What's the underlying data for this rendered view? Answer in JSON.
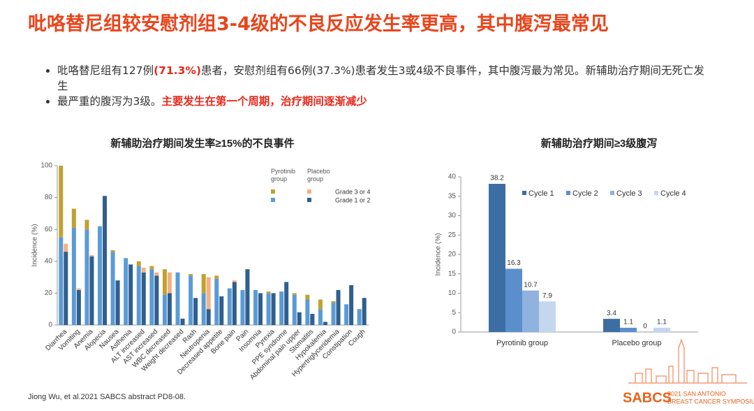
{
  "header": {
    "title": "吡咯替尼组较安慰剂组3-4级的不良反应发生率更高，其中腹泻最常见"
  },
  "bullets": [
    {
      "parts": [
        {
          "text": "吡咯替尼组有127例",
          "highlight": false
        },
        {
          "text": "(71.3%)",
          "highlight": true
        },
        {
          "text": "患者，安慰剂组有66例(37.3%)患者发生3或4级不良事件，其中腹泻最为常见。新辅助治疗期间无死亡发生",
          "highlight": false
        }
      ]
    },
    {
      "parts": [
        {
          "text": "最严重的腹泻为3级。",
          "highlight": false
        },
        {
          "text": "主要发生在第一个周期，治疗期间逐渐减少",
          "highlight": true
        }
      ]
    }
  ],
  "citation": "Jiong Wu, et al.2021 SABCS abstract PD8-08.",
  "logo": {
    "name": "SABCS",
    "line1": "2021 SAN ANTONIO",
    "line2": "BREAST CANCER SYMPOSIUM"
  },
  "chart_data": [
    {
      "type": "stacked-grouped-bar",
      "title": "新辅助治疗期间发生率≥15%的不良事件",
      "y_label": "Incidence (%)",
      "categories": [
        "Diarrhea",
        "Vomiting",
        "Anemia",
        "Alopecia",
        "Nausea",
        "Asthenia",
        "ALT increased",
        "AST increased",
        "WBC decreased",
        "Weight decreased",
        "Rash",
        "Neutropenia",
        "Decreased appetite",
        "Bone pain",
        "Pain",
        "Insomnia",
        "Pyrexia",
        "PPE syndrome",
        "Abdominal pain upper",
        "Stomatitis",
        "Hypokalemia",
        "Hypertriglyceridemia",
        "Constipation",
        "Cough"
      ],
      "series": [
        {
          "group": "Pyrotinib group",
          "grade": "Grade 1 or 2",
          "color": "#5b9bd5",
          "values": [
            55,
            61,
            60,
            62,
            46,
            42,
            37,
            35,
            19,
            33,
            31,
            20,
            29,
            23,
            22,
            22,
            20,
            21,
            19,
            16,
            10,
            14,
            13,
            10
          ]
        },
        {
          "group": "Pyrotinib group",
          "grade": "Grade 3 or 4",
          "color": "#bfa232",
          "values": [
            45,
            12,
            6,
            0,
            1,
            0,
            3,
            2,
            16,
            0,
            1,
            12,
            2,
            0,
            0,
            0,
            1,
            0,
            1,
            3,
            6,
            1,
            0,
            0
          ]
        },
        {
          "group": "Placebo group",
          "grade": "Grade 1 or 2",
          "color": "#2f5f8e",
          "values": [
            46,
            22,
            43,
            81,
            28,
            38,
            33,
            31,
            20,
            4,
            17,
            10,
            18,
            27,
            35,
            20,
            20,
            27,
            8,
            7,
            2,
            22,
            25,
            17
          ]
        },
        {
          "group": "Placebo group",
          "grade": "Grade 3 or 4",
          "color": "#f4b183",
          "values": [
            5,
            1,
            1,
            0,
            0,
            0,
            3,
            2,
            13,
            0,
            0,
            20,
            0,
            1,
            0,
            0,
            0,
            0,
            0,
            0,
            0,
            0,
            0,
            0
          ]
        }
      ],
      "ylim": [
        0,
        100
      ],
      "yticks": [
        0,
        20,
        40,
        60,
        80,
        100
      ]
    },
    {
      "type": "grouped-bar",
      "title": "新辅助治疗期间≥3级腹泻",
      "y_label": "Incidence (%)",
      "categories": [
        "Pyrotinib group",
        "Placebo group"
      ],
      "series": [
        {
          "name": "Cycle 1",
          "color": "#3d6ea3",
          "values": [
            38.2,
            3.4
          ]
        },
        {
          "name": "Cycle 2",
          "color": "#5b8fcc",
          "values": [
            16.3,
            1.1
          ]
        },
        {
          "name": "Cycle 3",
          "color": "#8fb2de",
          "values": [
            10.7,
            0
          ]
        },
        {
          "name": "Cycle 4",
          "color": "#c5d7ee",
          "values": [
            7.9,
            1.1
          ]
        }
      ],
      "ylim": [
        0,
        40
      ],
      "yticks": [
        0,
        5,
        10,
        15,
        20,
        25,
        30,
        35,
        40
      ]
    }
  ]
}
